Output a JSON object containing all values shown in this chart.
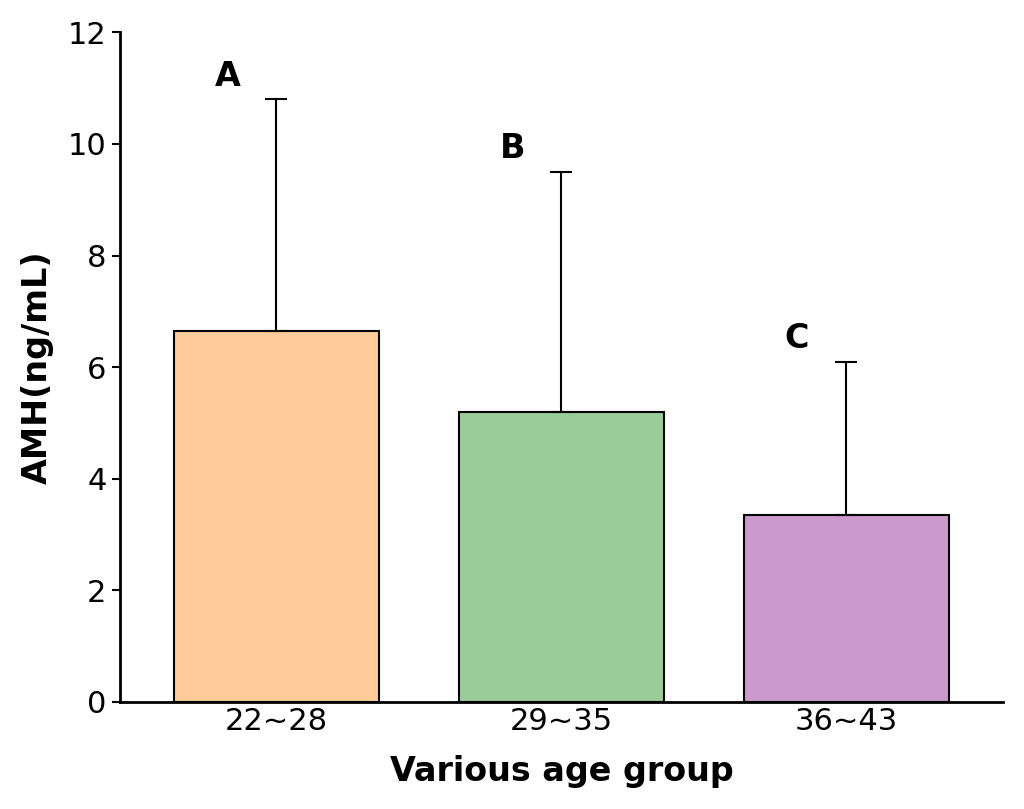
{
  "categories": [
    "22~28",
    "29~35",
    "36~43"
  ],
  "values": [
    6.65,
    5.2,
    3.35
  ],
  "bar_colors": [
    "#FFCC99",
    "#99CC99",
    "#CC99CC"
  ],
  "bar_edgecolors": [
    "#000000",
    "#000000",
    "#000000"
  ],
  "error_upper": [
    4.15,
    4.3,
    2.75
  ],
  "error_lower": [
    0.0,
    0.0,
    0.0
  ],
  "labels": [
    "A",
    "B",
    "C"
  ],
  "xlabel": "Various age group",
  "ylabel": "AMH(ng/mL)",
  "ylim": [
    0,
    12
  ],
  "yticks": [
    0,
    2,
    4,
    6,
    8,
    10,
    12
  ],
  "bar_width": 0.72,
  "axis_label_fontsize": 24,
  "tick_fontsize": 22,
  "annotation_fontsize": 24,
  "background_color": "#ffffff",
  "capsize": 8,
  "elinewidth": 1.5,
  "ecapthick": 1.5,
  "spine_linewidth": 2.0
}
